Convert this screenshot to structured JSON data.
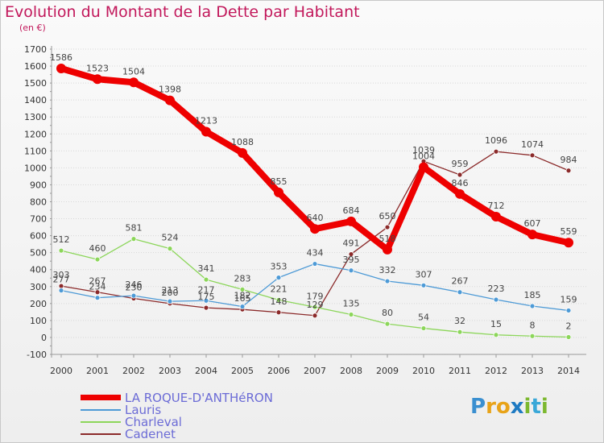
{
  "chart_data": {
    "type": "line",
    "title": "Evolution du Montant de la Dette par Habitant",
    "subtitle": "(en €)",
    "ylim": [
      -100,
      1700
    ],
    "yticks": [
      -100,
      0,
      100,
      200,
      300,
      400,
      500,
      600,
      700,
      800,
      900,
      1000,
      1100,
      1200,
      1300,
      1400,
      1500,
      1600,
      1700
    ],
    "categories": [
      "2000",
      "2001",
      "2002",
      "2003",
      "2004",
      "2005",
      "2006",
      "2007",
      "2008",
      "2009",
      "2010",
      "2011",
      "2012",
      "2013",
      "2014"
    ],
    "series": [
      {
        "name": "LA ROQUE-D'ANTHéRON",
        "color": "#ee0000",
        "values": [
          1586,
          1523,
          1504,
          1398,
          1213,
          1088,
          855,
          640,
          684,
          518,
          1004,
          846,
          712,
          607,
          559
        ]
      },
      {
        "name": "Lauris",
        "color": "#4d9ad6",
        "values": [
          277,
          234,
          246,
          213,
          217,
          182,
          353,
          434,
          395,
          332,
          307,
          267,
          223,
          185,
          159
        ]
      },
      {
        "name": "Charleval",
        "color": "#8cd65a",
        "values": [
          512,
          460,
          581,
          524,
          341,
          283,
          221,
          179,
          135,
          80,
          54,
          32,
          15,
          8,
          2
        ]
      },
      {
        "name": "Cadenet",
        "color": "#8b2a2a",
        "values": [
          303,
          267,
          230,
          200,
          175,
          165,
          148,
          129,
          491,
          650,
          1039,
          959,
          1096,
          1074,
          984
        ]
      }
    ],
    "legend_position": "bottom-left"
  },
  "legend": {
    "items": [
      {
        "label": "LA ROQUE-D'ANTHéRON"
      },
      {
        "label": "Lauris"
      },
      {
        "label": "Charleval"
      },
      {
        "label": "Cadenet"
      }
    ]
  },
  "logo": {
    "text": "Proxiti"
  }
}
